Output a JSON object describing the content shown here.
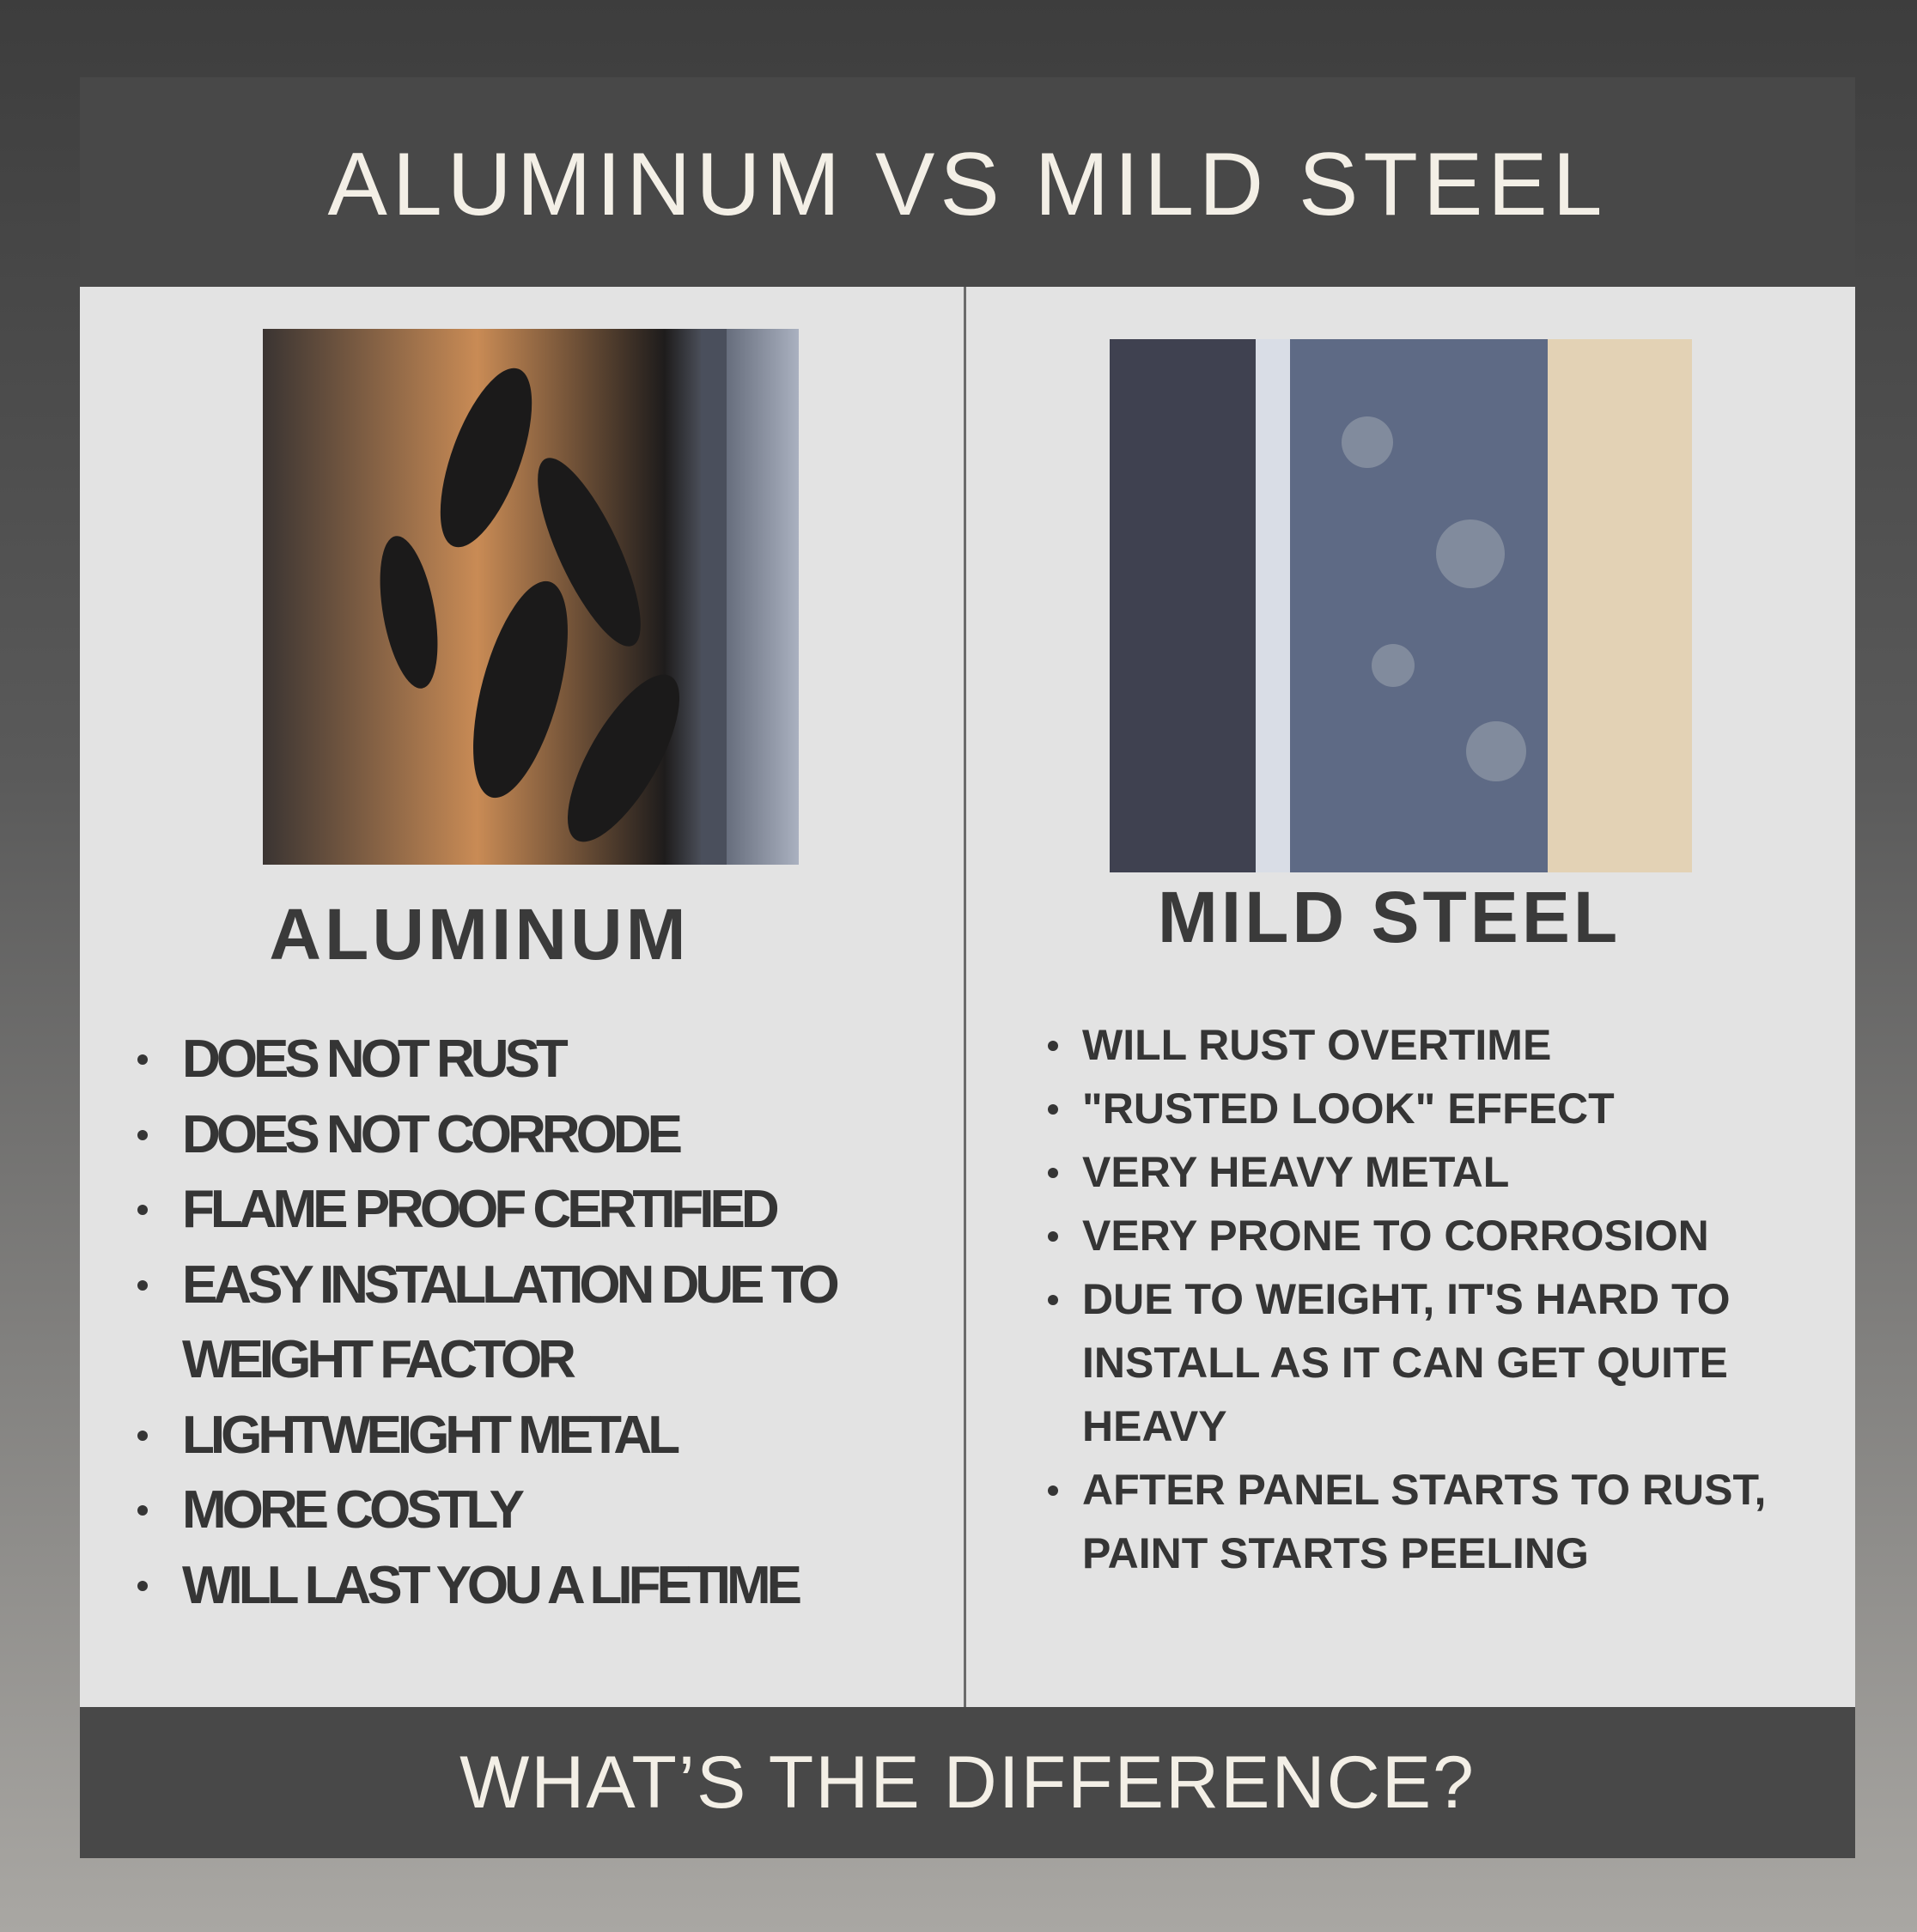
{
  "header": {
    "title": "ALUMINUM VS MILD STEEL"
  },
  "left": {
    "heading": "ALUMINUM",
    "items": [
      "DOES NOT RUST",
      "DOES NOT CORRODE",
      "FLAME PROOF CERTIFIED",
      "EASY INSTALLATION DUE TO WEIGHT FACTOR",
      "LIGHTWEIGHT METAL",
      "MORE COSTLY",
      "WILL LAST YOU A LIFETIME"
    ]
  },
  "right": {
    "heading": "MILD STEEL",
    "items": [
      "WILL RUST OVERTIME",
      "\"RUSTED LOOK\" EFFECT",
      "VERY HEAVY METAL",
      "VERY PRONE TO CORROSION",
      "DUE TO WEIGHT, IT'S HARD TO INSTALL AS IT CAN GET QUITE HEAVY",
      "AFTER PANEL STARTS TO RUST, PAINT STARTS PEELING"
    ]
  },
  "footer": {
    "text": "WHAT’S THE DIFFERENCE?"
  }
}
